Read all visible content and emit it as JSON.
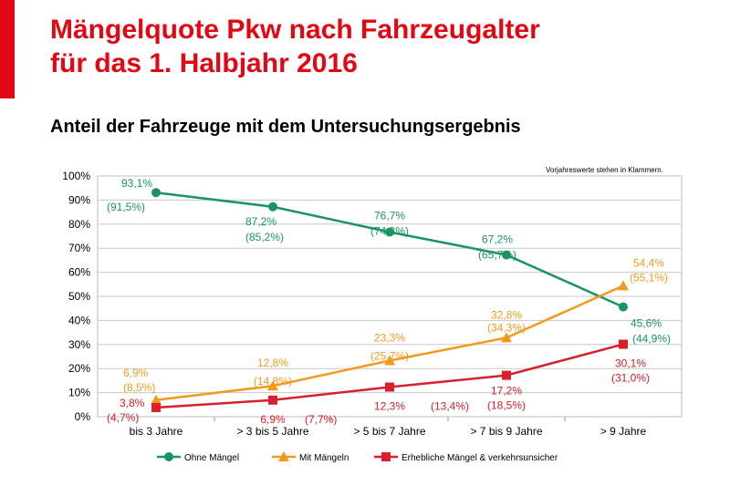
{
  "title_line1": "Mängelquote Pkw nach Fahrzeugalter",
  "title_line2": "für das 1. Halbjahr 2016",
  "subtitle": "Anteil der Fahrzeuge mit dem Untersuchungsergebnis",
  "note": "Vorjahreswerte stehen in Klammern.",
  "chart_data": {
    "type": "line",
    "categories": [
      "bis 3 Jahre",
      "> 3 bis 5 Jahre",
      "> 5 bis 7 Jahre",
      "> 7 bis 9 Jahre",
      "> 9 Jahre"
    ],
    "y_ticks": [
      "0%",
      "10%",
      "20%",
      "30%",
      "40%",
      "50%",
      "60%",
      "70%",
      "80%",
      "90%",
      "100%"
    ],
    "ylim": [
      0,
      100
    ],
    "grid": "horizontal",
    "legend_position": "bottom",
    "series": [
      {
        "name": "Ohne Mängel",
        "color": "#1a9460",
        "marker": "circle",
        "values": [
          93.1,
          87.2,
          76.7,
          67.2,
          45.6
        ],
        "value_labels": [
          "93,1%",
          "87,2%",
          "76,7%",
          "67,2%",
          "45,6%"
        ],
        "previous_year_labels": [
          "(91,5%)",
          "(85,2%)",
          "(74,3%)",
          "(65,7%)",
          "(44,9%)"
        ]
      },
      {
        "name": "Mit Mängeln",
        "color": "#f39a1e",
        "marker": "triangle",
        "values": [
          6.9,
          12.8,
          23.3,
          32.8,
          54.4
        ],
        "value_labels": [
          "6,9%",
          "12,8%",
          "23,3%",
          "32,8%",
          "54,4%"
        ],
        "previous_year_labels": [
          "(8,5%)",
          "(14,8%)",
          "(25,7%)",
          "(34,3%)",
          "(55,1%)"
        ]
      },
      {
        "name": "Erhebliche Mängel & verkehrsunsicher",
        "color": "#d8202c",
        "marker": "square",
        "values": [
          3.8,
          6.9,
          12.3,
          17.2,
          30.1
        ],
        "value_labels": [
          "3,8%",
          "6,9%",
          "12,3%",
          "17,2%",
          "30,1%"
        ],
        "previous_year_labels": [
          "(4,7%)",
          "(7,7%)",
          "(13,4%)",
          "(18,5%)",
          "(31,0%)"
        ]
      }
    ]
  }
}
